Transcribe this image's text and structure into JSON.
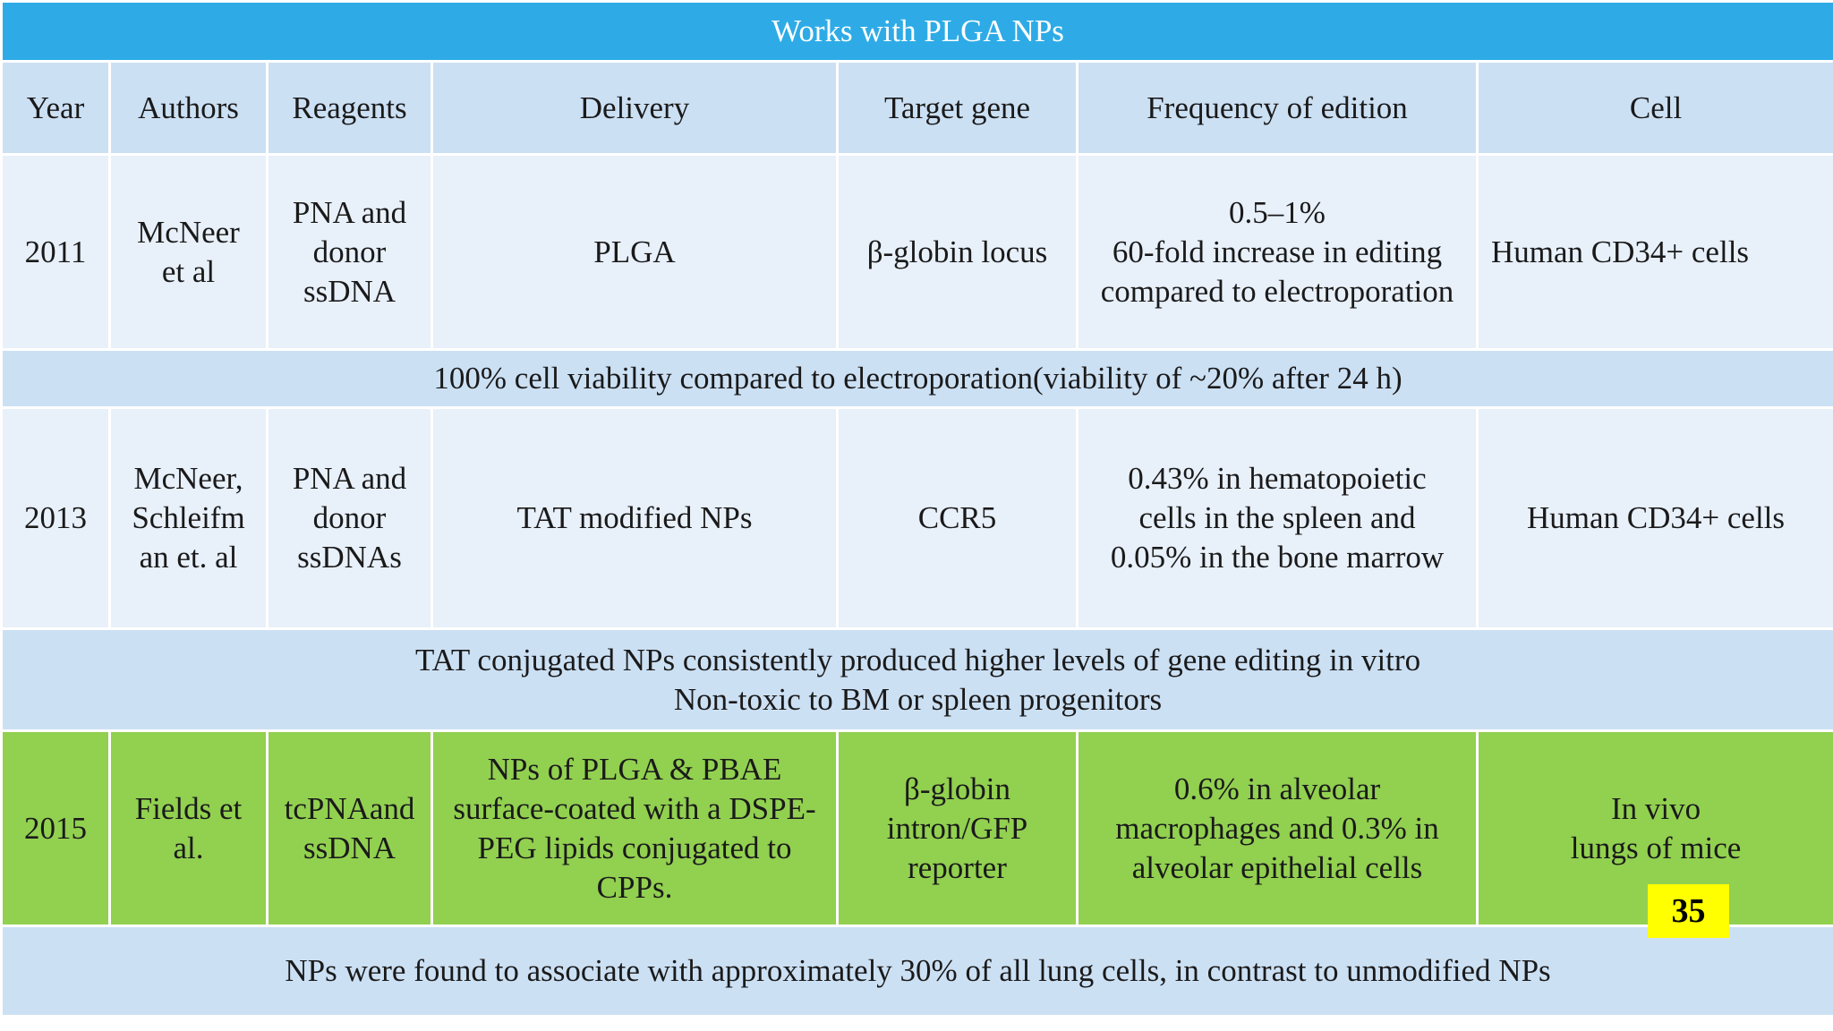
{
  "title": "Works with PLGA NPs",
  "headers": [
    "Year",
    "Authors",
    "Reagents",
    "Delivery",
    "Target gene",
    "Frequency of edition",
    "Cell"
  ],
  "rows": [
    {
      "year": "2011",
      "authors": [
        "McNeer",
        "et al"
      ],
      "reagents": [
        "PNA and",
        "donor",
        "ssDNA"
      ],
      "delivery": [
        "PLGA"
      ],
      "target_gene": [
        "β-globin locus"
      ],
      "frequency": [
        "0.5–1%",
        "60-fold increase in editing",
        "compared to electroporation"
      ],
      "cell": [
        "Human CD34+ cells"
      ],
      "note": [
        "100% cell viability compared to electroporation(viability of ~20% after 24 h)"
      ]
    },
    {
      "year": "2013",
      "authors": [
        "McNeer,",
        "Schleifm",
        "an et. al"
      ],
      "reagents": [
        "PNA and",
        "donor",
        "ssDNAs"
      ],
      "delivery": [
        "TAT modified NPs"
      ],
      "target_gene": [
        "CCR5"
      ],
      "frequency": [
        "0.43% in hematopoietic",
        "cells in the spleen and",
        "0.05% in the bone marrow"
      ],
      "cell": [
        "Human CD34+ cells"
      ],
      "note": [
        "TAT conjugated NPs consistently produced higher levels of gene editing in vitro",
        "Non-toxic to BM or spleen progenitors"
      ]
    },
    {
      "year": "2015",
      "authors": [
        "Fields et",
        "al."
      ],
      "reagents": [
        "tcPNAand",
        "ssDNA"
      ],
      "delivery": [
        "NPs of PLGA & PBAE",
        "surface-coated with a DSPE-",
        "PEG lipids conjugated to",
        "CPPs."
      ],
      "target_gene": [
        "β-globin",
        "intron/GFP",
        "reporter"
      ],
      "frequency": [
        "0.6% in alveolar",
        "macrophages and 0.3% in",
        "alveolar epithelial cells"
      ],
      "cell": [
        "In vivo",
        "lungs of mice"
      ],
      "note": [
        "NPs were found to associate with approximately 30% of all lung cells, in contrast to unmodified NPs"
      ]
    }
  ],
  "slide_number": "35",
  "colors": {
    "title_bar": "#2eabe6",
    "header_bg": "#cce0f4",
    "data_bg": "#e8f0fa",
    "highlight_row": "#92d050",
    "slide_number_bg": "#ffff00"
  }
}
